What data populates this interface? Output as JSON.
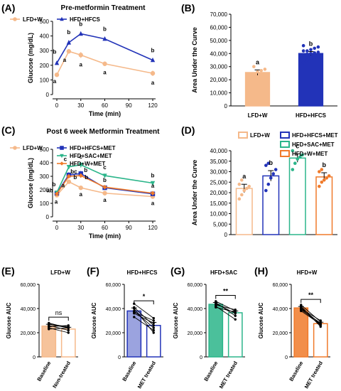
{
  "colors": {
    "lfd": "#f5b98a",
    "hfcs": "#2233b8",
    "sac": "#2bb58a",
    "w": "#f07a2a",
    "black": "#000000"
  },
  "panels": {
    "A": {
      "letter": "(A)",
      "title": "Pre-metformin Treatment"
    },
    "B": {
      "letter": "(B)"
    },
    "C": {
      "letter": "(C)",
      "title": "Post 6 week Metformin Treatment"
    },
    "D": {
      "letter": "(D)"
    },
    "E": {
      "letter": "(E)",
      "title": "LFD+W"
    },
    "F": {
      "letter": "(F)",
      "title": "HFD+HFCS"
    },
    "G": {
      "letter": "(G)",
      "title": "HFD+SAC"
    },
    "H": {
      "letter": "(H)",
      "title": "HFD+W"
    }
  },
  "chart_data": [
    {
      "id": "A",
      "type": "line",
      "title": "Pre-metformin Treatment",
      "xlabel": "Time (min)",
      "ylabel": "Glucose (mg/dL)",
      "x": [
        0,
        15,
        30,
        60,
        120
      ],
      "xticks": [
        "0",
        "30",
        "60",
        "90",
        "120"
      ],
      "ylim": [
        0,
        500
      ],
      "yticks": [
        "0",
        "100",
        "200",
        "300",
        "400",
        "500"
      ],
      "series": [
        {
          "name": "LFD+W",
          "color": "lfd",
          "marker": "circle",
          "values": [
            135,
            295,
            270,
            210,
            145
          ],
          "err": [
            5,
            15,
            20,
            15,
            18
          ],
          "labels": [
            "a",
            "a",
            "a",
            "a",
            "a"
          ]
        },
        {
          "name": "HFD+HFCS",
          "color": "hfcs",
          "marker": "triangle",
          "values": [
            215,
            355,
            415,
            380,
            235
          ],
          "err": [
            8,
            15,
            8,
            10,
            12
          ],
          "labels": [
            "b",
            "b",
            "b",
            "b",
            "b"
          ]
        }
      ],
      "legend": "top-left"
    },
    {
      "id": "B",
      "type": "bar",
      "ylabel": "Area Under the Curve",
      "categories": [
        "LFD+W",
        "HFD+HFCS"
      ],
      "values": [
        25500,
        40000
      ],
      "err": [
        2000,
        1500
      ],
      "colors": [
        "lfd",
        "hfcs"
      ],
      "letters": [
        "a",
        "b"
      ],
      "ylim": [
        0,
        70000
      ],
      "yticks": [
        "0",
        "10,000",
        "20,000",
        "30,000",
        "40,000",
        "50,000",
        "60,000",
        "70,000"
      ],
      "points": [
        [
          21000,
          22000,
          26000,
          27000,
          28000,
          24000,
          30000
        ],
        [
          33000,
          35000,
          36000,
          37000,
          38000,
          39000,
          39500,
          40000,
          40500,
          41000,
          42000,
          42000,
          43000,
          44000,
          45000,
          46000,
          38000,
          37000
        ]
      ]
    },
    {
      "id": "C",
      "type": "line",
      "title": "Post 6 week Metformin Treatment",
      "xlabel": "Time (min)",
      "ylabel": "Glucose (mg/dL)",
      "x": [
        0,
        15,
        30,
        60,
        120
      ],
      "xticks": [
        "0",
        "30",
        "60",
        "90",
        "120"
      ],
      "ylim": [
        0,
        500
      ],
      "yticks": [
        "0",
        "100",
        "200",
        "300",
        "400",
        "500"
      ],
      "series": [
        {
          "name": "LFD+W",
          "color": "lfd",
          "marker": "circle",
          "values": [
            160,
            260,
            215,
            175,
            150
          ],
          "err": [
            8,
            15,
            15,
            10,
            10
          ],
          "labels": [
            "a",
            "a",
            "a",
            "a",
            "a"
          ]
        },
        {
          "name": "HFD+HFCS+MET",
          "color": "hfcs",
          "marker": "square",
          "values": [
            175,
            310,
            320,
            215,
            170
          ],
          "err": [
            8,
            20,
            20,
            15,
            10
          ],
          "labels": [
            "b",
            "bc",
            "b",
            "b",
            "a"
          ]
        },
        {
          "name": "HFD+SAC+MET",
          "color": "sac",
          "marker": "triangledown",
          "values": [
            180,
            370,
            385,
            305,
            250
          ],
          "err": [
            8,
            15,
            20,
            15,
            12
          ],
          "labels": [
            "b",
            "c",
            "c",
            "c",
            "b"
          ]
        },
        {
          "name": "HFD+W+MET",
          "color": "w",
          "marker": "diamond",
          "values": [
            170,
            300,
            305,
            220,
            175
          ],
          "err": [
            8,
            15,
            15,
            12,
            10
          ],
          "labels": [
            "ab",
            "b",
            "b",
            "b",
            "a"
          ]
        }
      ],
      "legend": "top"
    },
    {
      "id": "D",
      "type": "bar",
      "ylabel": "Area Under the Curve",
      "categories": [
        "LFD+W",
        "HFD+HFCS+MET",
        "HFD+SAC+MET",
        "HFD+W+MET"
      ],
      "values": [
        22000,
        28000,
        36500,
        27500
      ],
      "err": [
        2000,
        2500,
        2000,
        2000
      ],
      "colors": [
        "lfd",
        "hfcs",
        "sac",
        "w"
      ],
      "letters": [
        "a",
        "b",
        "c",
        "b"
      ],
      "ylim": [
        0,
        40000
      ],
      "yticks": [
        "0",
        "5,000",
        "10,000",
        "15,000",
        "20,000",
        "25,000",
        "30,000",
        "35,000",
        "40,000"
      ],
      "legend": "top",
      "points": [
        [
          17000,
          19000,
          21000,
          22000,
          23000,
          24000,
          26000
        ],
        [
          21000,
          24000,
          27000,
          29000,
          31000,
          33000,
          34000
        ],
        [
          31000,
          34000,
          36000,
          37000,
          38000,
          40000
        ],
        [
          23000,
          25000,
          26000,
          27000,
          28000,
          30000,
          31000
        ]
      ]
    },
    {
      "id": "E",
      "type": "bar",
      "title": "LFD+W",
      "ylabel": "Glucose AUC",
      "categories": [
        "Baseline",
        "Non-treated"
      ],
      "values": [
        25500,
        23000
      ],
      "err": [
        1500,
        1500
      ],
      "colors": [
        "lfd",
        "lfd"
      ],
      "hollow": [
        false,
        true
      ],
      "sig": "ns",
      "pairs": [
        [
          27000,
          24000
        ],
        [
          26000,
          22000
        ],
        [
          25000,
          26000
        ],
        [
          23000,
          24000
        ],
        [
          28000,
          24000
        ],
        [
          24000,
          20000
        ],
        [
          27000,
          25000
        ]
      ],
      "ylim": [
        0,
        60000
      ],
      "yticks": [
        "0",
        "20,000",
        "40,000",
        "60,000"
      ]
    },
    {
      "id": "F",
      "type": "bar",
      "title": "HFD+HFCS",
      "ylabel": "Glucose AUC",
      "categories": [
        "Baseline",
        "MET treated"
      ],
      "values": [
        38000,
        26000
      ],
      "err": [
        2500,
        2500
      ],
      "colors": [
        "hfcs",
        "hfcs"
      ],
      "hollow": [
        false,
        true
      ],
      "sig": "*",
      "pairs": [
        [
          44000,
          32000
        ],
        [
          40000,
          20000
        ],
        [
          37000,
          30000
        ],
        [
          38000,
          24000
        ],
        [
          41000,
          26000
        ],
        [
          33000,
          22000
        ],
        [
          36000,
          28000
        ]
      ],
      "ylim": [
        0,
        60000
      ],
      "yticks": [
        "0",
        "20,000",
        "40,000",
        "60,000"
      ]
    },
    {
      "id": "G",
      "type": "bar",
      "title": "HFD+SAC",
      "ylabel": "Glucose AUC",
      "categories": [
        "Baseline",
        "MET treated"
      ],
      "values": [
        43500,
        36500
      ],
      "err": [
        1500,
        1500
      ],
      "colors": [
        "sac",
        "sac"
      ],
      "hollow": [
        false,
        true
      ],
      "sig": "**",
      "pairs": [
        [
          46000,
          38000
        ],
        [
          44000,
          36000
        ],
        [
          42000,
          31000
        ],
        [
          45000,
          34000
        ],
        [
          43000,
          39000
        ],
        [
          41000,
          37000
        ]
      ],
      "ylim": [
        0,
        60000
      ],
      "yticks": [
        "0",
        "20,000",
        "40,000",
        "60,000"
      ]
    },
    {
      "id": "H",
      "type": "bar",
      "title": "HFD+W",
      "ylabel": "Glucose AUC",
      "categories": [
        "Baseline",
        "MET treated"
      ],
      "values": [
        40500,
        27500
      ],
      "err": [
        1200,
        1200
      ],
      "colors": [
        "w",
        "w"
      ],
      "hollow": [
        false,
        true
      ],
      "sig": "**",
      "pairs": [
        [
          43000,
          29000
        ],
        [
          41000,
          27000
        ],
        [
          40000,
          26000
        ],
        [
          39000,
          28000
        ],
        [
          42000,
          25000
        ],
        [
          38000,
          27000
        ],
        [
          40000,
          30000
        ]
      ],
      "ylim": [
        0,
        60000
      ],
      "yticks": [
        "0",
        "20,000",
        "40,000",
        "60,000"
      ]
    }
  ]
}
